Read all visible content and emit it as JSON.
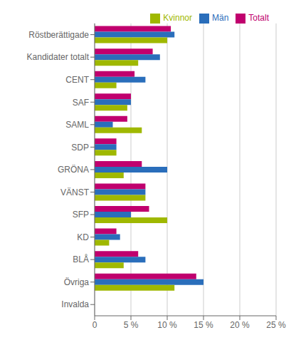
{
  "chart_data": {
    "type": "bar",
    "orientation": "horizontal",
    "categories": [
      "Invalda",
      "Övriga",
      "BLÅ",
      "KD",
      "SFP",
      "VÄNST",
      "GRÖNA",
      "SDP",
      "SAML",
      "SAF",
      "CENT",
      "Kandidater totalt",
      "Röstberättigade"
    ],
    "series": [
      {
        "name": "Totalt",
        "color": "#c0006e",
        "values": [
          0,
          14,
          6,
          3,
          7.5,
          7,
          6.5,
          3,
          4.5,
          5,
          5.5,
          8,
          10.5
        ]
      },
      {
        "name": "Män",
        "color": "#2a6ebb",
        "values": [
          0,
          15,
          7,
          3.5,
          5,
          7,
          10,
          3,
          2.5,
          5,
          7,
          9,
          11
        ]
      },
      {
        "name": "Kvinnor",
        "color": "#9fb800",
        "values": [
          0,
          11,
          4,
          2,
          10,
          7,
          4,
          3,
          6.5,
          4.5,
          3,
          6,
          10
        ]
      }
    ],
    "xlim": [
      0,
      25
    ],
    "xticks": [
      0,
      {
        "value": 5,
        "label": "5 %"
      },
      {
        "value": 10,
        "label": "10 %"
      },
      {
        "value": 15,
        "label": "15 %"
      },
      {
        "value": 20,
        "label": "20 %"
      },
      {
        "value": 25,
        "label": "25 %"
      }
    ],
    "grid": true,
    "legend": "upper right"
  }
}
